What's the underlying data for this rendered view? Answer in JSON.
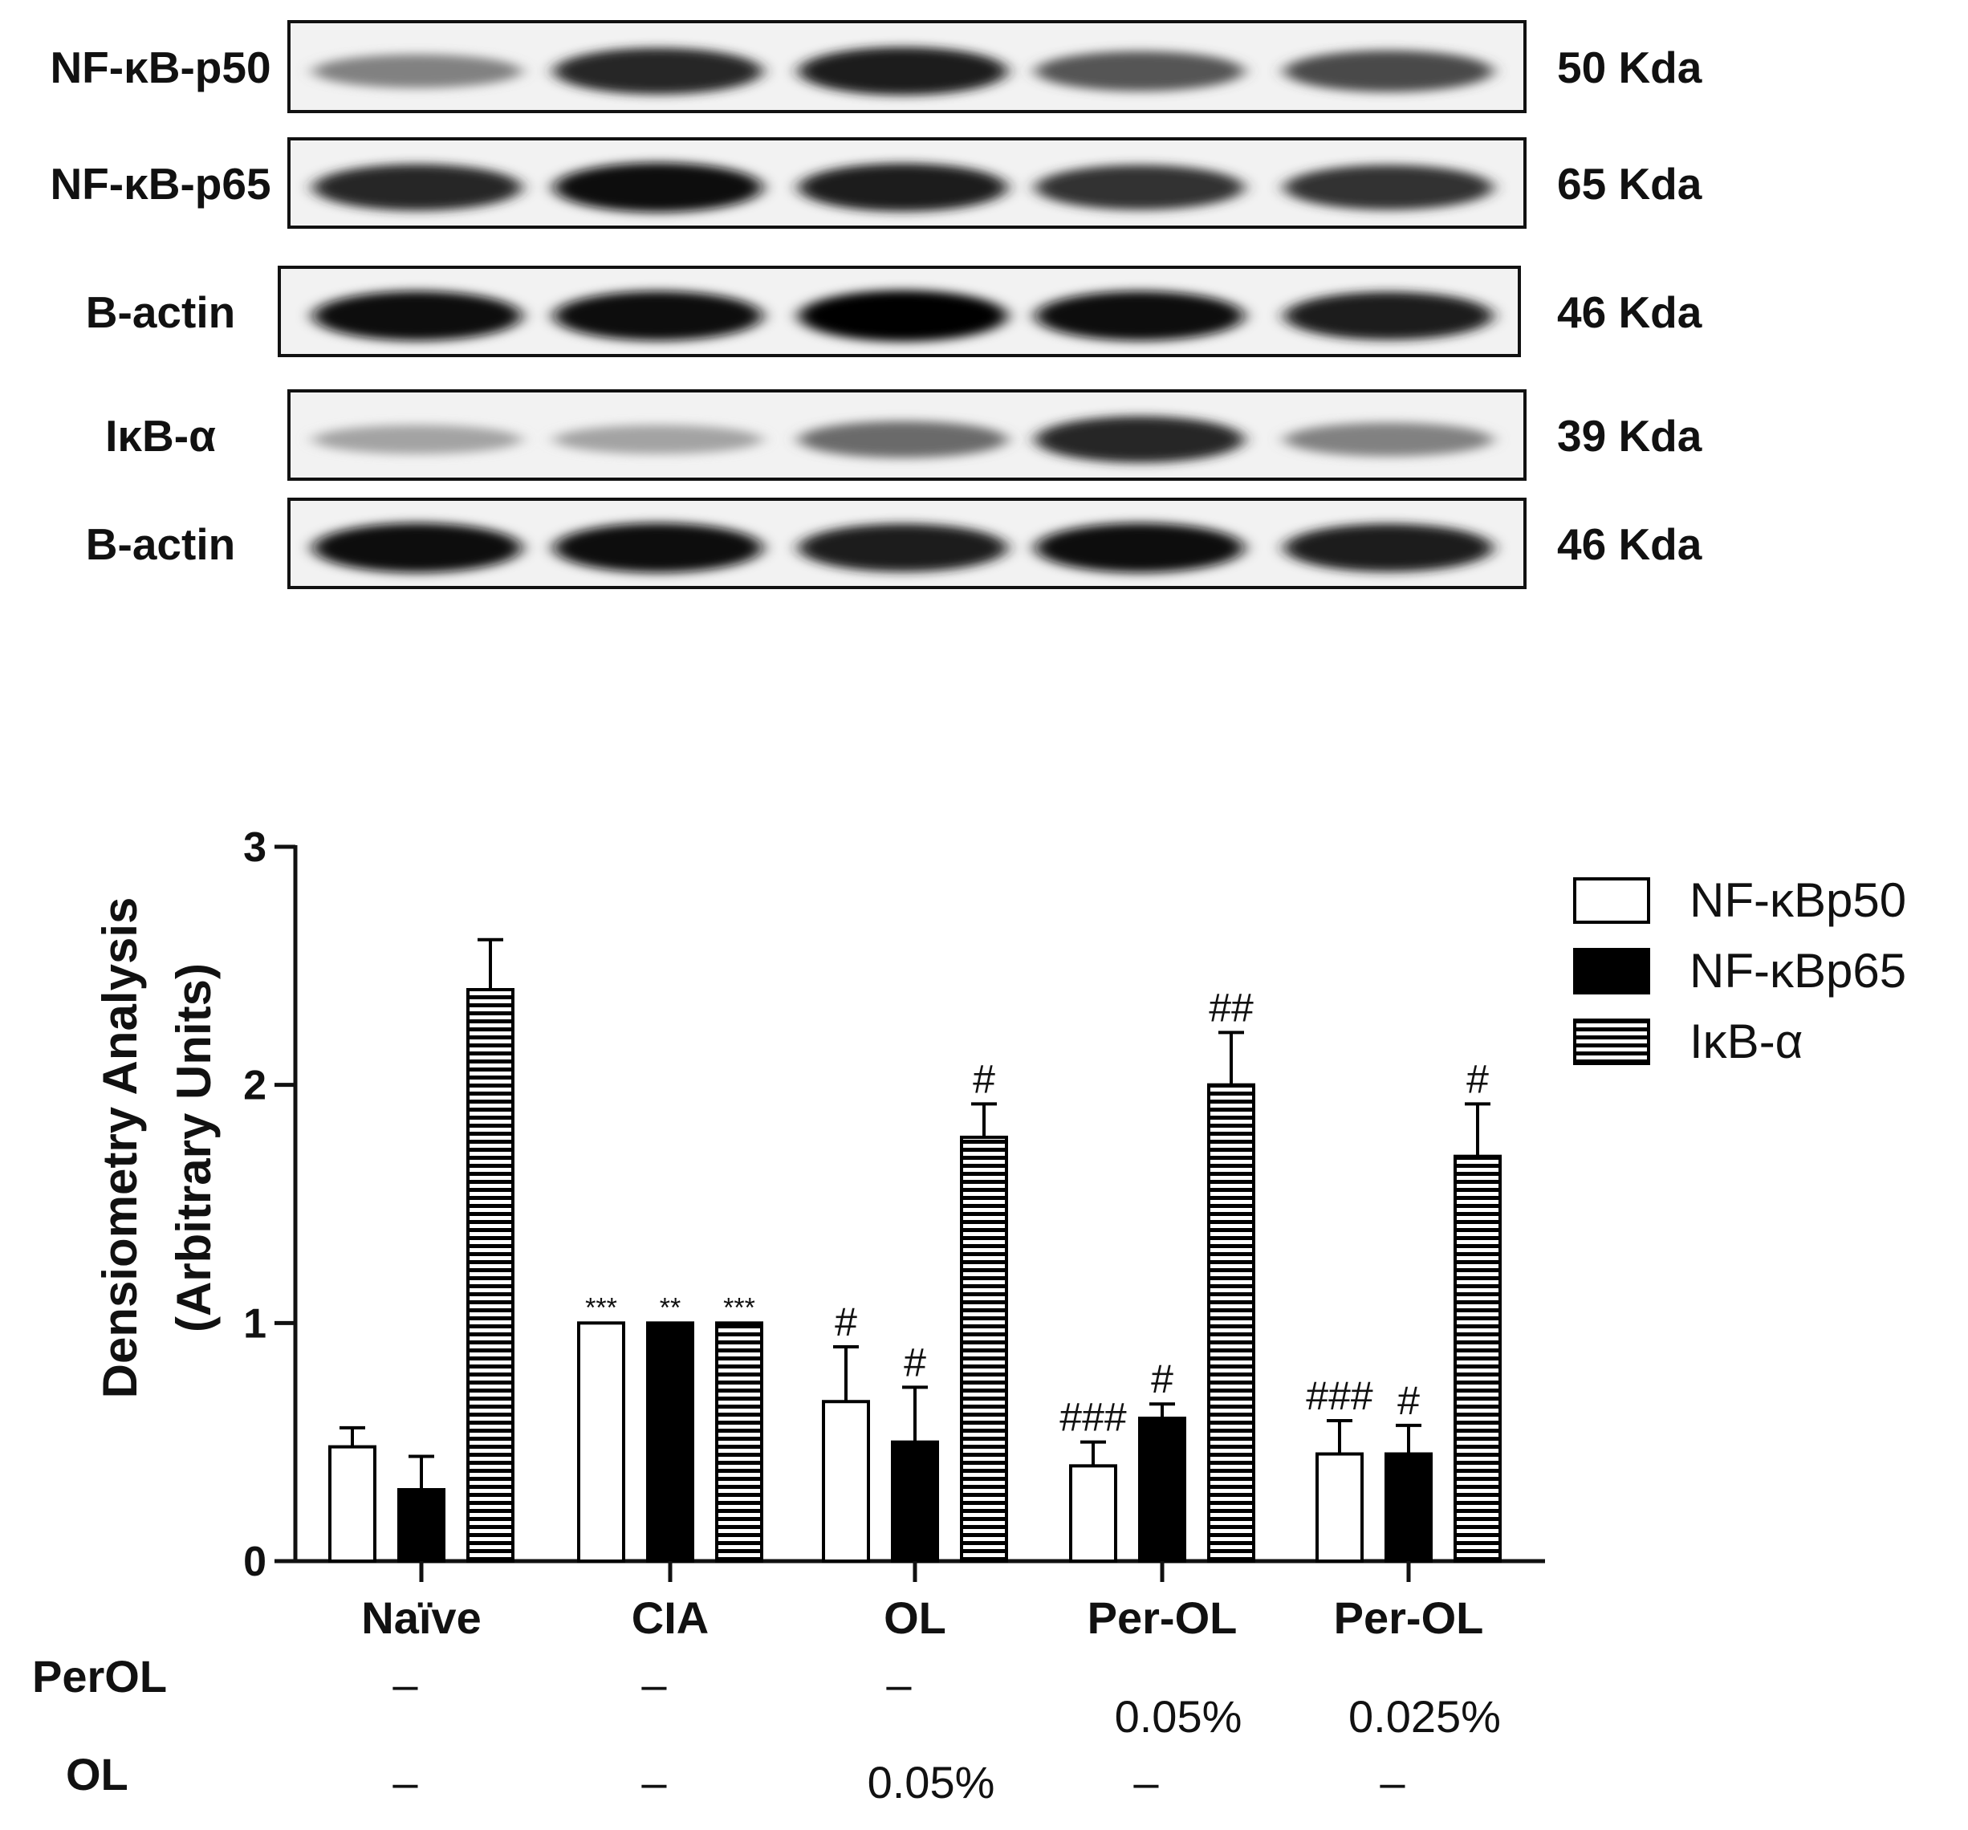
{
  "blots": [
    {
      "label": "NF-κB-p50",
      "kda": "50 Kda",
      "intensity": [
        0.45,
        0.85,
        0.9,
        0.65,
        0.7
      ]
    },
    {
      "label": "NF-κB-p65",
      "kda": "65 Kda",
      "intensity": [
        0.85,
        0.95,
        0.9,
        0.8,
        0.8
      ]
    },
    {
      "label": "B-actin",
      "kda": "46 Kda",
      "intensity": [
        0.95,
        0.95,
        1.0,
        0.95,
        0.9
      ]
    },
    {
      "label": "IκB-α",
      "kda": "39 Kda",
      "intensity": [
        0.3,
        0.3,
        0.55,
        0.85,
        0.45
      ]
    },
    {
      "label": "B-actin",
      "kda": "46 Kda",
      "intensity": [
        0.95,
        0.95,
        0.9,
        0.95,
        0.9
      ]
    }
  ],
  "chart_data": {
    "type": "bar",
    "title": "",
    "xlabel": "",
    "ylabel_line1": "Densiometry Analysis",
    "ylabel_line2": "(Arbitrary Units)",
    "ylim": [
      0,
      3
    ],
    "yticks": [
      "0",
      "1",
      "2",
      "3"
    ],
    "categories": [
      "Naïve",
      "CIA",
      "OL",
      "Per-OL",
      "Per-OL"
    ],
    "series": [
      {
        "name": "NF-κBp50",
        "pattern": "white",
        "values": [
          0.48,
          1.0,
          0.67,
          0.4,
          0.45
        ],
        "errors": [
          0.08,
          0.0,
          0.23,
          0.1,
          0.14
        ],
        "annotations": [
          "",
          "***",
          "#",
          "###",
          "###"
        ]
      },
      {
        "name": "NF-κBp65",
        "pattern": "black",
        "values": [
          0.3,
          1.0,
          0.5,
          0.6,
          0.45
        ],
        "errors": [
          0.14,
          0.0,
          0.23,
          0.06,
          0.12
        ],
        "annotations": [
          "",
          "**",
          "#",
          "#",
          "#"
        ]
      },
      {
        "name": "IκB-α",
        "pattern": "horizontal-stripes",
        "values": [
          2.4,
          1.0,
          1.78,
          2.0,
          1.7
        ],
        "errors": [
          0.21,
          0.0,
          0.14,
          0.22,
          0.22
        ],
        "annotations": [
          "",
          "***",
          "#",
          "##",
          "#"
        ]
      }
    ],
    "legend_position": "top-right"
  },
  "treatments": [
    {
      "label": "PerOL",
      "values": [
        "–",
        "–",
        "–",
        "0.05%",
        "0.025%"
      ]
    },
    {
      "label": "OL",
      "values": [
        "–",
        "–",
        "0.05%",
        "–",
        "–"
      ]
    }
  ]
}
